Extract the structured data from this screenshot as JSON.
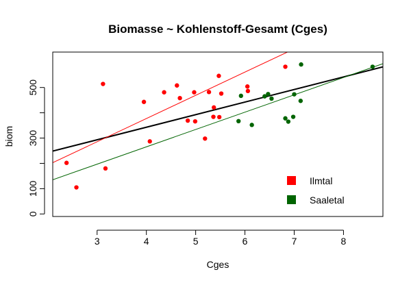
{
  "chart_data": {
    "type": "scatter",
    "title": "Biomasse ~ Kohlenstoff-Gesamt (Cges)",
    "xlabel": "Cges",
    "ylabel": "biom",
    "xlim": [
      2.1,
      8.8
    ],
    "ylim": [
      -10,
      640
    ],
    "x_ticks": [
      3,
      4,
      5,
      6,
      7,
      8
    ],
    "y_ticks": [
      0,
      100,
      300,
      500
    ],
    "legend": {
      "placement": "bottom-right"
    },
    "series": [
      {
        "name": "Ilmtal",
        "color": "#ff0000",
        "points": [
          [
            2.38,
            202
          ],
          [
            2.58,
            105
          ],
          [
            3.12,
            514
          ],
          [
            3.17,
            180
          ],
          [
            3.95,
            443
          ],
          [
            4.07,
            287
          ],
          [
            4.36,
            481
          ],
          [
            4.62,
            508
          ],
          [
            4.68,
            458
          ],
          [
            4.84,
            369
          ],
          [
            4.97,
            481
          ],
          [
            4.99,
            366
          ],
          [
            5.19,
            298
          ],
          [
            5.27,
            482
          ],
          [
            5.36,
            384
          ],
          [
            5.37,
            421
          ],
          [
            5.47,
            546
          ],
          [
            5.48,
            383
          ],
          [
            5.52,
            476
          ],
          [
            6.05,
            504
          ],
          [
            6.06,
            486
          ],
          [
            6.82,
            582
          ]
        ]
      },
      {
        "name": "Saaletal",
        "color": "#006400",
        "points": [
          [
            5.87,
            367
          ],
          [
            5.92,
            467
          ],
          [
            6.14,
            352
          ],
          [
            6.4,
            465
          ],
          [
            6.47,
            474
          ],
          [
            6.54,
            456
          ],
          [
            6.82,
            378
          ],
          [
            6.88,
            365
          ],
          [
            6.98,
            384
          ],
          [
            7.0,
            473
          ],
          [
            7.13,
            447
          ],
          [
            7.14,
            591
          ],
          [
            8.59,
            582
          ]
        ]
      }
    ],
    "lines": [
      {
        "name": "overall",
        "color": "#000000",
        "width": 2,
        "intercept": 144.2,
        "slope": 49.68
      },
      {
        "name": "Ilmtal",
        "color": "#ff0000",
        "width": 1,
        "intercept": 10.0,
        "slope": 91.8
      },
      {
        "name": "Saaletal",
        "color": "#006400",
        "width": 1,
        "intercept": -8.6,
        "slope": 68.5
      }
    ]
  }
}
